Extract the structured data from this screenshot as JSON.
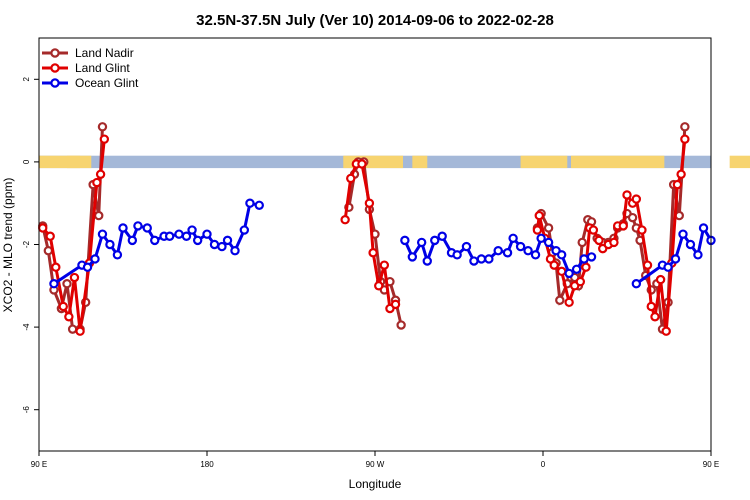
{
  "chart_data": {
    "type": "line",
    "title": "32.5N-37.5N July (Ver 10)   2014-09-06 to 2022-02-28",
    "xlabel": "Longitude",
    "ylabel": "XCO2 - MLO trend (ppm)",
    "xlim": [
      90,
      450
    ],
    "ylim": [
      -7.0,
      3.0
    ],
    "x_ticks": [
      {
        "value": 90,
        "label": "90 E"
      },
      {
        "value": 180,
        "label": "180"
      },
      {
        "value": 270,
        "label": "90 W"
      },
      {
        "value": 360,
        "label": "0"
      },
      {
        "value": 450,
        "label": "90 E"
      },
      {
        "value": 540,
        "label": "180"
      }
    ],
    "y_ticks": [
      {
        "value": 2,
        "label": "2"
      },
      {
        "value": 0,
        "label": "0"
      },
      {
        "value": -2,
        "label": "-2"
      },
      {
        "value": -4,
        "label": "-4"
      },
      {
        "value": -6,
        "label": "-6"
      }
    ],
    "legend_position": "top-left",
    "grid": false,
    "land_mask_band": {
      "y_center": 0.0,
      "land_color": "#f7d470",
      "ocean_color": "#a4b8d8",
      "land_ranges": [
        [
          90,
          118
        ],
        [
          105,
          112
        ],
        [
          253,
          285
        ],
        [
          290,
          298
        ],
        [
          348,
          373
        ],
        [
          375,
          425
        ],
        [
          460,
          480
        ],
        [
          483,
          498
        ]
      ]
    },
    "series": [
      {
        "name": "Land Nadir",
        "color": "#a52a2a",
        "points": [
          [
            92,
            -1.55
          ],
          [
            95,
            -2.15
          ],
          [
            98,
            -3.1
          ],
          [
            102,
            -3.55
          ],
          [
            105,
            -2.95
          ],
          [
            108,
            -4.05
          ],
          [
            112,
            -4.05
          ],
          [
            115,
            -3.4
          ],
          [
            119,
            -0.55
          ],
          [
            122,
            -1.3
          ],
          [
            124,
            0.85
          ],
          [
            256,
            -1.1
          ],
          [
            259,
            -0.3
          ],
          [
            261,
            0.0
          ],
          [
            264,
            0.0
          ],
          [
            267,
            -1.15
          ],
          [
            270,
            -1.75
          ],
          [
            273,
            -2.9
          ],
          [
            275,
            -3.1
          ],
          [
            278,
            -2.9
          ],
          [
            281,
            -3.35
          ],
          [
            284,
            -3.95
          ],
          [
            357,
            -1.6
          ],
          [
            359,
            -1.25
          ],
          [
            363,
            -1.6
          ],
          [
            365,
            -2.2
          ],
          [
            367,
            -2.45
          ],
          [
            369,
            -3.35
          ],
          [
            373,
            -2.95
          ],
          [
            375,
            -2.8
          ],
          [
            377,
            -2.8
          ],
          [
            379,
            -3.0
          ],
          [
            381,
            -1.95
          ],
          [
            384,
            -1.4
          ],
          [
            386,
            -1.45
          ],
          [
            389,
            -1.85
          ],
          [
            392,
            -1.95
          ],
          [
            395,
            -1.95
          ],
          [
            398,
            -1.85
          ],
          [
            400,
            -1.6
          ],
          [
            403,
            -1.5
          ],
          [
            405,
            -1.25
          ],
          [
            408,
            -1.35
          ],
          [
            410,
            -1.6
          ],
          [
            412,
            -1.9
          ],
          [
            415,
            -2.75
          ],
          [
            418,
            -3.1
          ],
          [
            421,
            -2.95
          ],
          [
            424,
            -4.05
          ],
          [
            427,
            -3.4
          ],
          [
            430,
            -0.55
          ],
          [
            433,
            -1.3
          ],
          [
            436,
            0.85
          ]
        ]
      },
      {
        "name": "Land Glint",
        "color": "#e00000",
        "points": [
          [
            92,
            -1.6
          ],
          [
            96,
            -1.8
          ],
          [
            99,
            -2.55
          ],
          [
            103,
            -3.5
          ],
          [
            106,
            -3.75
          ],
          [
            109,
            -2.8
          ],
          [
            112,
            -4.1
          ],
          [
            117,
            -2.45
          ],
          [
            121,
            -0.5
          ],
          [
            123,
            -0.3
          ],
          [
            125,
            0.55
          ],
          [
            254,
            -1.4
          ],
          [
            257,
            -0.4
          ],
          [
            260,
            -0.05
          ],
          [
            263,
            -0.05
          ],
          [
            267,
            -1.0
          ],
          [
            269,
            -2.2
          ],
          [
            272,
            -3.0
          ],
          [
            275,
            -2.5
          ],
          [
            278,
            -3.55
          ],
          [
            281,
            -3.45
          ],
          [
            357,
            -1.65
          ],
          [
            358,
            -1.3
          ],
          [
            361,
            -1.85
          ],
          [
            364,
            -2.35
          ],
          [
            366,
            -2.5
          ],
          [
            370,
            -2.65
          ],
          [
            374,
            -3.4
          ],
          [
            377,
            -3.0
          ],
          [
            380,
            -2.9
          ],
          [
            383,
            -2.55
          ],
          [
            385,
            -1.6
          ],
          [
            387,
            -1.65
          ],
          [
            390,
            -1.9
          ],
          [
            392,
            -2.1
          ],
          [
            395,
            -2.0
          ],
          [
            398,
            -1.95
          ],
          [
            400,
            -1.55
          ],
          [
            403,
            -1.55
          ],
          [
            405,
            -0.8
          ],
          [
            408,
            -1.0
          ],
          [
            410,
            -0.9
          ],
          [
            413,
            -1.65
          ],
          [
            416,
            -2.5
          ],
          [
            418,
            -3.5
          ],
          [
            420,
            -3.75
          ],
          [
            423,
            -2.85
          ],
          [
            426,
            -4.1
          ],
          [
            429,
            -2.45
          ],
          [
            432,
            -0.55
          ],
          [
            434,
            -0.3
          ],
          [
            436,
            0.55
          ]
        ]
      },
      {
        "name": "Ocean Glint",
        "color": "#0000e6",
        "points": [
          [
            98,
            -2.95
          ],
          [
            113,
            -2.5
          ],
          [
            116,
            -2.55
          ],
          [
            120,
            -2.35
          ],
          [
            124,
            -1.75
          ],
          [
            128,
            -2.0
          ],
          [
            132,
            -2.25
          ],
          [
            135,
            -1.6
          ],
          [
            140,
            -1.9
          ],
          [
            143,
            -1.55
          ],
          [
            148,
            -1.6
          ],
          [
            152,
            -1.9
          ],
          [
            157,
            -1.8
          ],
          [
            160,
            -1.8
          ],
          [
            165,
            -1.75
          ],
          [
            169,
            -1.8
          ],
          [
            172,
            -1.65
          ],
          [
            175,
            -1.9
          ],
          [
            180,
            -1.75
          ],
          [
            184,
            -2.0
          ],
          [
            188,
            -2.05
          ],
          [
            191,
            -1.9
          ],
          [
            195,
            -2.15
          ],
          [
            200,
            -1.65
          ],
          [
            203,
            -1.0
          ],
          [
            208,
            -1.05
          ],
          [
            286,
            -1.9
          ],
          [
            290,
            -2.3
          ],
          [
            295,
            -1.95
          ],
          [
            298,
            -2.4
          ],
          [
            302,
            -1.9
          ],
          [
            306,
            -1.8
          ],
          [
            311,
            -2.2
          ],
          [
            314,
            -2.25
          ],
          [
            319,
            -2.05
          ],
          [
            323,
            -2.4
          ],
          [
            327,
            -2.35
          ],
          [
            331,
            -2.35
          ],
          [
            336,
            -2.15
          ],
          [
            341,
            -2.2
          ],
          [
            344,
            -1.85
          ],
          [
            348,
            -2.05
          ],
          [
            352,
            -2.15
          ],
          [
            356,
            -2.25
          ],
          [
            359,
            -1.85
          ],
          [
            363,
            -1.95
          ],
          [
            367,
            -2.15
          ],
          [
            370,
            -2.25
          ],
          [
            374,
            -2.7
          ],
          [
            378,
            -2.6
          ],
          [
            382,
            -2.35
          ],
          [
            386,
            -2.3
          ],
          [
            410,
            -2.95
          ],
          [
            424,
            -2.5
          ],
          [
            427,
            -2.55
          ],
          [
            431,
            -2.35
          ],
          [
            435,
            -1.75
          ],
          [
            439,
            -2.0
          ],
          [
            443,
            -2.25
          ],
          [
            446,
            -1.6
          ],
          [
            450,
            -1.9
          ]
        ]
      }
    ]
  }
}
